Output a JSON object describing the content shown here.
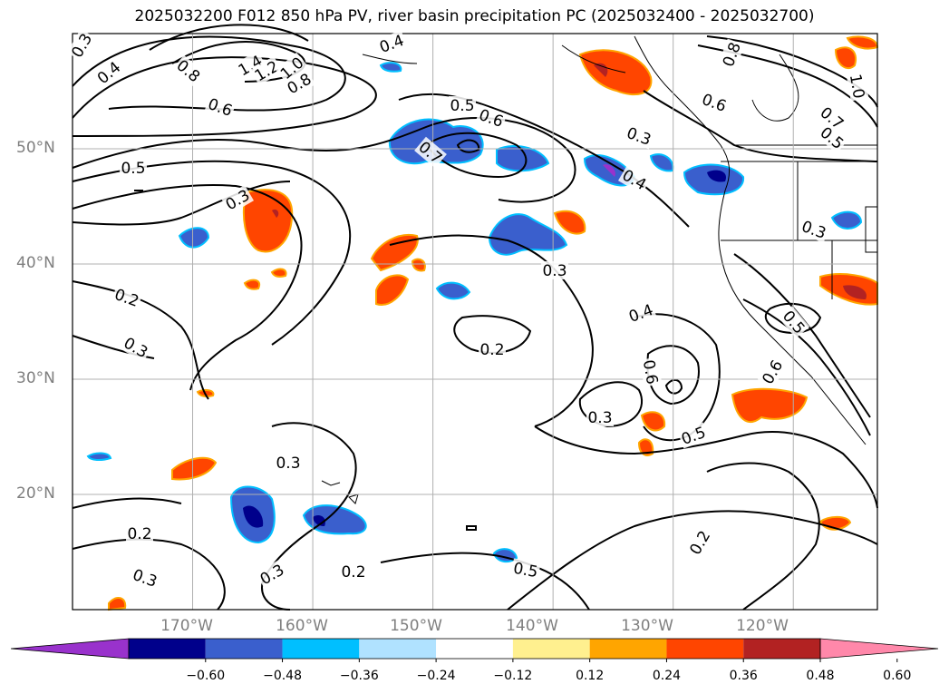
{
  "title": "2025032200 F012 850 hPa PV, river basin precipitation PC (2025032400 - 2025032700)",
  "map": {
    "lon_labels": [
      "170°W",
      "160°W",
      "150°W",
      "140°W",
      "130°W",
      "120°W"
    ],
    "lat_labels": [
      "50°N",
      "40°N",
      "30°N",
      "20°N"
    ],
    "extent": {
      "lon_min": -180,
      "lon_max": -113,
      "lat_min": 10,
      "lat_max": 60
    },
    "contour_labels": [
      "0.3",
      "0.4",
      "0.8",
      "1.4",
      "1.2",
      "1.0",
      "0.8",
      "0.6",
      "0.5",
      "0.6",
      "0.3",
      "0.4",
      "0.8",
      "0.6",
      "0.7",
      "0.5",
      "1.0",
      "0.5",
      "0.3",
      "0.7",
      "0.3",
      "0.4",
      "0.3",
      "0.2",
      "0.3",
      "0.2",
      "0.4",
      "0.6",
      "0.5",
      "0.6",
      "0.3",
      "0.5",
      "0.3",
      "0.2",
      "0.3",
      "0.3",
      "0.2",
      "0.5",
      "0.2"
    ],
    "contour_color": "#000000",
    "gridline_color": "#b0b0b0"
  },
  "colorbar": {
    "ticks": [
      "−0.60",
      "−0.48",
      "−0.36",
      "−0.24",
      "−0.12",
      "0.12",
      "0.24",
      "0.36",
      "0.48",
      "0.60"
    ],
    "colors": [
      "#9932cc",
      "#00008b",
      "#3a5fcd",
      "#00bfff",
      "#b0e2ff",
      "#ffffff",
      "#fff08f",
      "#ffa500",
      "#ff4500",
      "#b22222",
      "#ff88aa"
    ],
    "bounds": [
      -0.6,
      -0.48,
      -0.36,
      -0.24,
      -0.12,
      0.12,
      0.24,
      0.36,
      0.48,
      0.6
    ]
  }
}
